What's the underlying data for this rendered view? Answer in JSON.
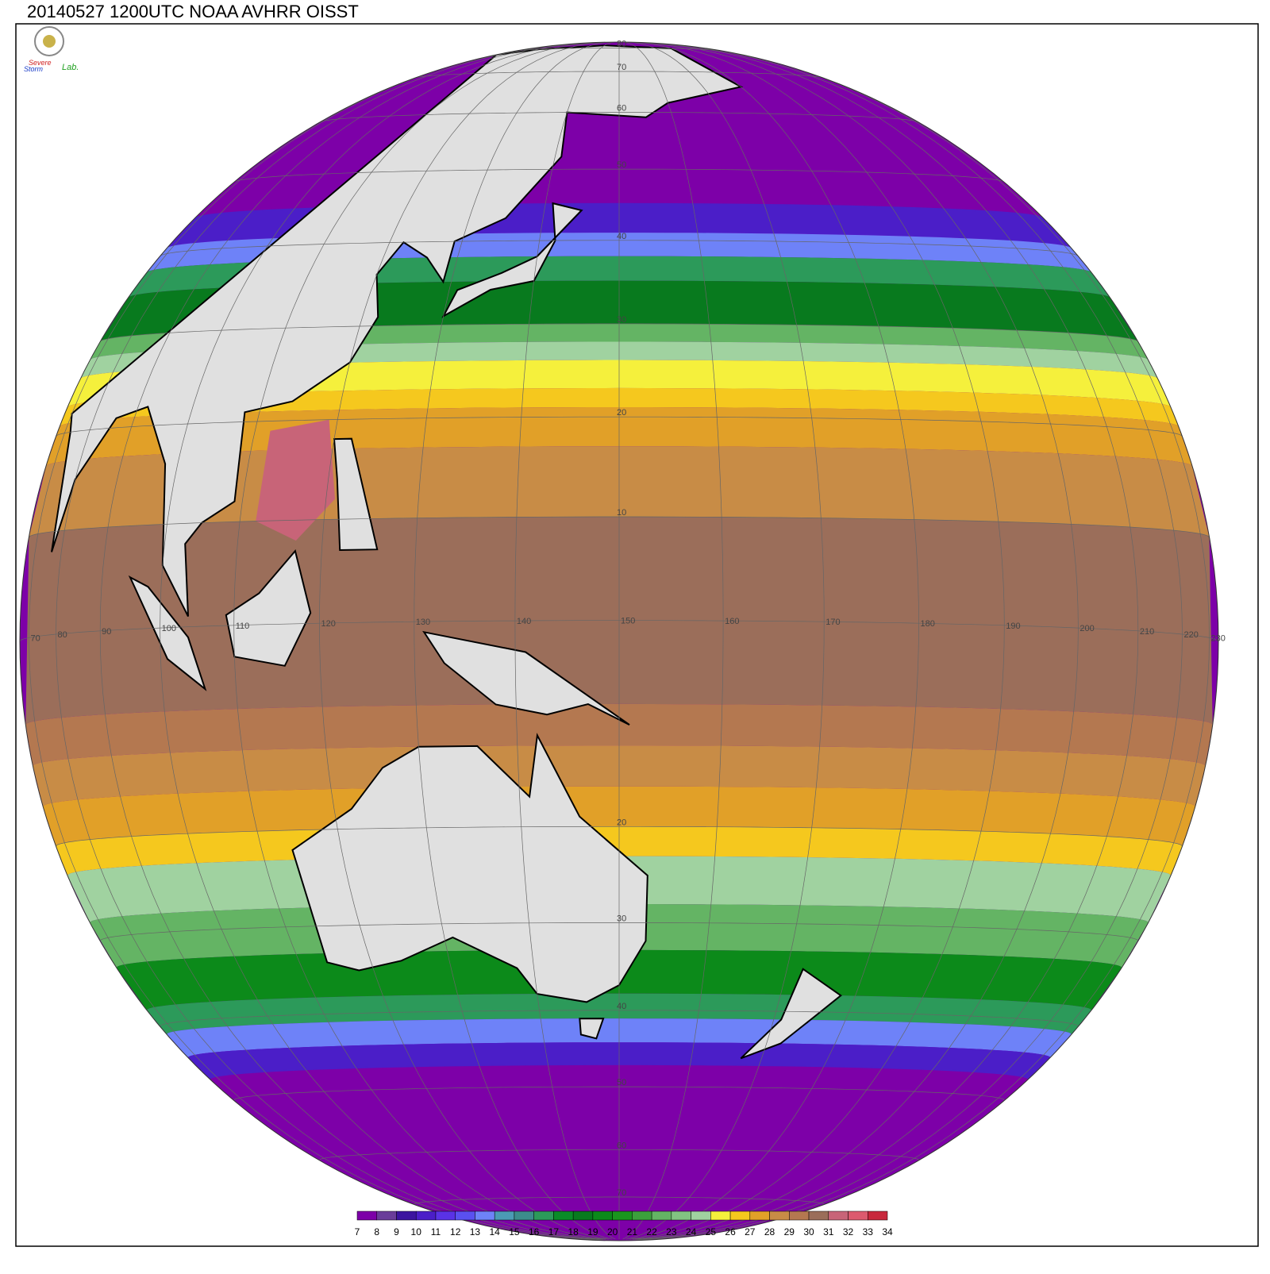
{
  "title": "20140527 1200UTC NOAA AVHRR OISST",
  "logo": [
    "Severe",
    "Storm",
    "Lab."
  ],
  "longitude_labels": [
    70,
    80,
    90,
    100,
    110,
    120,
    130,
    140,
    150,
    160,
    170,
    180,
    190,
    200,
    210,
    220,
    230
  ],
  "latitude_labels_north": [
    80,
    70,
    60,
    50,
    40,
    30,
    20,
    10
  ],
  "latitude_labels_south": [
    20,
    30,
    40,
    50,
    60,
    70
  ],
  "colorbar": {
    "ticks": [
      7,
      8,
      9,
      10,
      11,
      12,
      13,
      14,
      15,
      16,
      17,
      18,
      19,
      20,
      21,
      22,
      23,
      24,
      25,
      26,
      27,
      28,
      29,
      30,
      31,
      32,
      33,
      34
    ],
    "colors": [
      "#7d00a8",
      "#6a3d9a",
      "#3c14a0",
      "#4b1ec8",
      "#5a32e6",
      "#5a50f0",
      "#6e82f8",
      "#4b9bb4",
      "#3c8c8c",
      "#2c9a5a",
      "#0a8c28",
      "#087a1e",
      "#0c8a1a",
      "#1a961e",
      "#3ca03c",
      "#64b464",
      "#82c382",
      "#a0d2a0",
      "#f5f03c",
      "#f5c81e",
      "#e1a028",
      "#c88c46",
      "#b47850",
      "#9b6e5a",
      "#c86478",
      "#dc5a6e",
      "#c8283c"
    ]
  }
}
